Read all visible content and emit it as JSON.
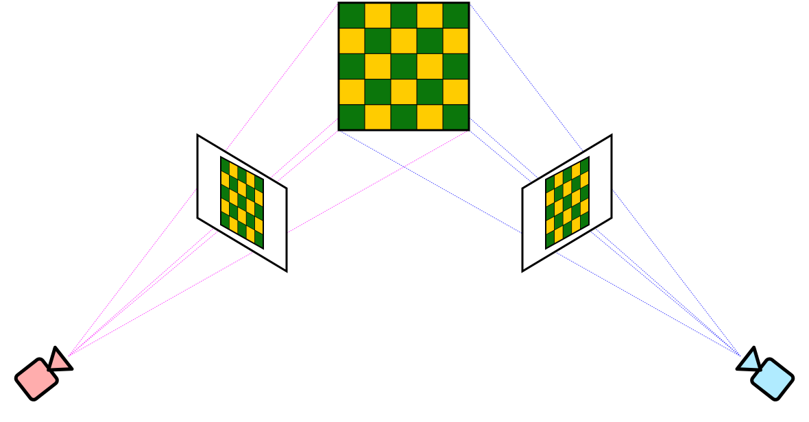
{
  "diagram": {
    "board": {
      "rows": 5,
      "cols": 5
    },
    "cameras": [
      {
        "id": "left",
        "body_color": "#FFADAD",
        "ray_color": "#FF3BFF"
      },
      {
        "id": "right",
        "body_color": "#B0EBFF",
        "ray_color": "#3B3BFF"
      }
    ],
    "colors": {
      "dark_square": "#0B760B",
      "light_square": "#FFCC00",
      "outline": "#000000",
      "background": "#FFFFFF"
    },
    "icons": {
      "camera": "video-camera-icon"
    }
  }
}
